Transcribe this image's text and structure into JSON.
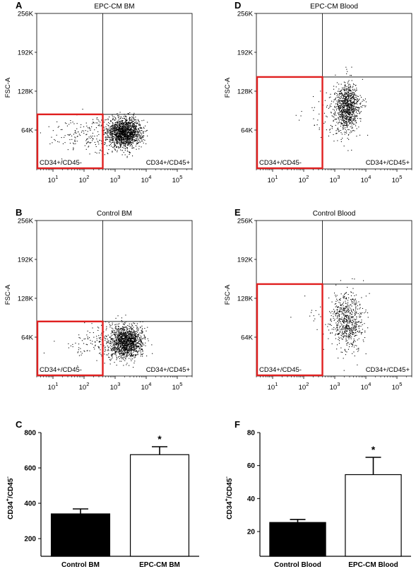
{
  "colors": {
    "gate": "#e02020",
    "dots": "#000000",
    "axis": "#000000",
    "bar_filled": "#000000",
    "bar_open": "#ffffff"
  },
  "chart_data": [
    {
      "id": "A",
      "type": "scatter",
      "panel_letter": "A",
      "title": "EPC-CM BM",
      "ylabel": "FSC-A",
      "xlabel": "",
      "x_scale": "log",
      "xlim": [
        3,
        300000
      ],
      "ylim": [
        0,
        262144
      ],
      "x_ticks": [
        {
          "value": 10,
          "base": "10",
          "exp": "1"
        },
        {
          "value": 100,
          "base": "10",
          "exp": "2"
        },
        {
          "value": 1000,
          "base": "10",
          "exp": "3"
        },
        {
          "value": 10000,
          "base": "10",
          "exp": "4"
        },
        {
          "value": 100000,
          "base": "10",
          "exp": "5"
        }
      ],
      "y_ticks": [
        {
          "value": 65536,
          "label": "64K"
        },
        {
          "value": 131072,
          "label": "128K"
        },
        {
          "value": 196608,
          "label": "192K"
        },
        {
          "value": 262144,
          "label": "256K"
        }
      ],
      "quadrant": {
        "x": 400,
        "y": 92000
      },
      "gate": {
        "x": [
          3,
          400
        ],
        "y": [
          0,
          92000
        ]
      },
      "gate_label": "CD34+/CD45-",
      "quadrant_label": "CD34+/CD45+",
      "populations": [
        {
          "n": 1500,
          "x_log_mean": 3.3,
          "x_log_sd": 0.28,
          "y_mean": 62000,
          "y_sd": 12500
        },
        {
          "n": 180,
          "x_log_mean": 2.3,
          "x_log_sd": 0.55,
          "y_mean": 58000,
          "y_sd": 15000
        },
        {
          "n": 25,
          "x_log_mean": 1.3,
          "x_log_sd": 0.4,
          "y_mean": 60000,
          "y_sd": 15000
        }
      ]
    },
    {
      "id": "B",
      "type": "scatter",
      "panel_letter": "B",
      "title": "Control BM",
      "ylabel": "FSC-A",
      "xlabel": "",
      "x_scale": "log",
      "xlim": [
        3,
        300000
      ],
      "ylim": [
        0,
        262144
      ],
      "x_ticks": [
        {
          "value": 10,
          "base": "10",
          "exp": "1"
        },
        {
          "value": 100,
          "base": "10",
          "exp": "2"
        },
        {
          "value": 1000,
          "base": "10",
          "exp": "3"
        },
        {
          "value": 10000,
          "base": "10",
          "exp": "4"
        },
        {
          "value": 100000,
          "base": "10",
          "exp": "5"
        }
      ],
      "y_ticks": [
        {
          "value": 65536,
          "label": "64K"
        },
        {
          "value": 131072,
          "label": "128K"
        },
        {
          "value": 196608,
          "label": "192K"
        },
        {
          "value": 262144,
          "label": "256K"
        }
      ],
      "quadrant": {
        "x": 400,
        "y": 92000
      },
      "gate": {
        "x": [
          3,
          400
        ],
        "y": [
          0,
          92000
        ]
      },
      "gate_label": "CD34+/CD45-",
      "quadrant_label": "CD34+/CD45+",
      "populations": [
        {
          "n": 1350,
          "x_log_mean": 3.35,
          "x_log_sd": 0.26,
          "y_mean": 58000,
          "y_sd": 14000
        },
        {
          "n": 110,
          "x_log_mean": 2.4,
          "x_log_sd": 0.45,
          "y_mean": 55000,
          "y_sd": 15000
        },
        {
          "n": 12,
          "x_log_mean": 1.6,
          "x_log_sd": 0.3,
          "y_mean": 58000,
          "y_sd": 12000
        }
      ]
    },
    {
      "id": "D",
      "type": "scatter",
      "panel_letter": "D",
      "title": "EPC-CM Blood",
      "ylabel": "FSC-A",
      "xlabel": "",
      "x_scale": "log",
      "xlim": [
        3,
        300000
      ],
      "ylim": [
        0,
        262144
      ],
      "x_ticks": [
        {
          "value": 10,
          "base": "10",
          "exp": "1"
        },
        {
          "value": 100,
          "base": "10",
          "exp": "2"
        },
        {
          "value": 1000,
          "base": "10",
          "exp": "3"
        },
        {
          "value": 10000,
          "base": "10",
          "exp": "4"
        },
        {
          "value": 100000,
          "base": "10",
          "exp": "5"
        }
      ],
      "y_ticks": [
        {
          "value": 65536,
          "label": "64K"
        },
        {
          "value": 131072,
          "label": "128K"
        },
        {
          "value": 196608,
          "label": "192K"
        },
        {
          "value": 262144,
          "label": "256K"
        }
      ],
      "quadrant": {
        "x": 400,
        "y": 155000
      },
      "gate": {
        "x": [
          3,
          400
        ],
        "y": [
          0,
          155000
        ]
      },
      "gate_label": "CD34+/CD45-",
      "quadrant_label": "CD34+/CD45+",
      "populations": [
        {
          "n": 850,
          "x_log_mean": 3.4,
          "x_log_sd": 0.2,
          "y_mean": 105000,
          "y_sd": 20000
        },
        {
          "n": 120,
          "x_log_mean": 3.1,
          "x_log_sd": 0.35,
          "y_mean": 85000,
          "y_sd": 22000
        },
        {
          "n": 10,
          "x_log_mean": 2.3,
          "x_log_sd": 0.35,
          "y_mean": 100000,
          "y_sd": 18000
        }
      ]
    },
    {
      "id": "E",
      "type": "scatter",
      "panel_letter": "E",
      "title": "Control Blood",
      "ylabel": "FSC-A",
      "xlabel": "",
      "x_scale": "log",
      "xlim": [
        3,
        300000
      ],
      "ylim": [
        0,
        262144
      ],
      "x_ticks": [
        {
          "value": 10,
          "base": "10",
          "exp": "1"
        },
        {
          "value": 100,
          "base": "10",
          "exp": "2"
        },
        {
          "value": 1000,
          "base": "10",
          "exp": "3"
        },
        {
          "value": 10000,
          "base": "10",
          "exp": "4"
        },
        {
          "value": 100000,
          "base": "10",
          "exp": "5"
        }
      ],
      "y_ticks": [
        {
          "value": 65536,
          "label": "64K"
        },
        {
          "value": 131072,
          "label": "128K"
        },
        {
          "value": 196608,
          "label": "192K"
        },
        {
          "value": 262144,
          "label": "256K"
        }
      ],
      "quadrant": {
        "x": 400,
        "y": 155000
      },
      "gate": {
        "x": [
          3,
          400
        ],
        "y": [
          0,
          155000
        ]
      },
      "gate_label": "CD34+/CD45-",
      "quadrant_label": "CD34+/CD45+",
      "populations": [
        {
          "n": 600,
          "x_log_mean": 3.4,
          "x_log_sd": 0.24,
          "y_mean": 95000,
          "y_sd": 24000
        },
        {
          "n": 50,
          "x_log_mean": 3.0,
          "x_log_sd": 0.4,
          "y_mean": 90000,
          "y_sd": 28000
        },
        {
          "n": 8,
          "x_log_mean": 2.2,
          "x_log_sd": 0.35,
          "y_mean": 110000,
          "y_sd": 15000
        }
      ]
    },
    {
      "id": "C",
      "type": "bar",
      "panel_letter": "C",
      "title": "",
      "ylabel_html": "CD34<tspan dy='-5' font-size='8'>+</tspan><tspan dy='5'>/CD45</tspan><tspan dy='-5' font-size='8'>-</tspan>",
      "ylabel": "CD34+/CD45-",
      "categories": [
        "Control BM",
        "EPC-CM BM"
      ],
      "values": [
        340,
        675
      ],
      "errors": [
        28,
        45
      ],
      "fills": [
        "filled",
        "open"
      ],
      "ylim": [
        100,
        800
      ],
      "y_ticks": [
        200,
        400,
        600,
        800
      ],
      "significance": [
        "",
        "*"
      ]
    },
    {
      "id": "F",
      "type": "bar",
      "panel_letter": "F",
      "title": "",
      "ylabel": "CD34+/CD45-",
      "categories": [
        "Control Blood",
        "EPC-CM Blood"
      ],
      "values": [
        25.5,
        54.5
      ],
      "errors": [
        1.8,
        10.5
      ],
      "fills": [
        "filled",
        "open"
      ],
      "ylim": [
        5,
        80
      ],
      "y_ticks": [
        20,
        40,
        60,
        80
      ],
      "significance": [
        "",
        "*"
      ]
    }
  ]
}
